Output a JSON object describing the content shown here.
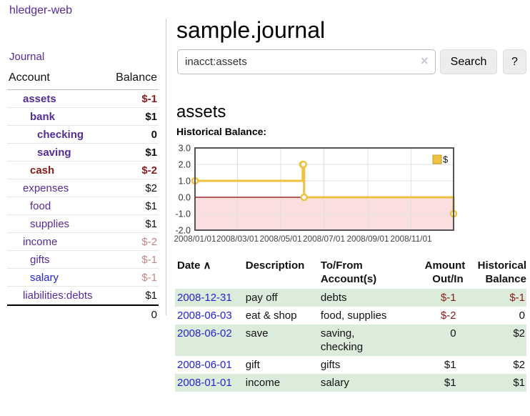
{
  "colors": {
    "link": "#2323d8",
    "link_visited": "#552b99",
    "negative": "#8b1a1a",
    "negative_muted": "#c08585",
    "row_stripe_green": "#dcecdb",
    "button_bg": "#ededed",
    "chart_line_gold": "#edc240",
    "chart_zero_line": "#8b0000",
    "chart_negative_fill": "#fbdfdf"
  },
  "sidebar": {
    "app_title": "hledger-web",
    "journal_label": "Journal",
    "accounts_table": {
      "account_header": "Account",
      "balance_header": "Balance",
      "rows": [
        {
          "name": "assets",
          "indent": 1,
          "bold": true,
          "name_color": "purple",
          "balance": "$-1",
          "balance_bold": true,
          "balance_color": "negative"
        },
        {
          "name": "bank",
          "indent": 2,
          "bold": true,
          "name_color": "purple",
          "balance": "$1",
          "balance_bold": true,
          "balance_color": "default"
        },
        {
          "name": "checking",
          "indent": 3,
          "bold": true,
          "name_color": "purple",
          "balance": "0",
          "balance_bold": true,
          "balance_color": "default"
        },
        {
          "name": "saving",
          "indent": 3,
          "bold": true,
          "name_color": "purple",
          "balance": "$1",
          "balance_bold": true,
          "balance_color": "default"
        },
        {
          "name": "cash",
          "indent": 2,
          "bold": true,
          "name_color": "negative",
          "balance": "$-2",
          "balance_bold": true,
          "balance_color": "negative"
        },
        {
          "name": "expenses",
          "indent": 1,
          "bold": false,
          "name_color": "purple",
          "balance": "$2",
          "balance_bold": false,
          "balance_color": "default"
        },
        {
          "name": "food",
          "indent": 2,
          "bold": false,
          "name_color": "purple",
          "balance": "$1",
          "balance_bold": false,
          "balance_color": "default"
        },
        {
          "name": "supplies",
          "indent": 2,
          "bold": false,
          "name_color": "purple",
          "balance": "$1",
          "balance_bold": false,
          "balance_color": "default"
        },
        {
          "name": "income",
          "indent": 1,
          "bold": false,
          "name_color": "purple",
          "balance": "$-2",
          "balance_bold": false,
          "balance_color": "muted"
        },
        {
          "name": "gifts",
          "indent": 2,
          "bold": false,
          "name_color": "purple",
          "balance": "$-1",
          "balance_bold": false,
          "balance_color": "muted"
        },
        {
          "name": "salary",
          "indent": 2,
          "bold": false,
          "name_color": "blue",
          "balance": "$-1",
          "balance_bold": false,
          "balance_color": "muted"
        },
        {
          "name": "liabilities:debts",
          "indent": 1,
          "bold": false,
          "name_color": "purple",
          "balance": "$1",
          "balance_bold": false,
          "balance_color": "default"
        }
      ],
      "total": "0"
    }
  },
  "main": {
    "title": "sample.journal",
    "search": {
      "value": "inacct:assets",
      "clear_icon": "×",
      "search_button": "Search",
      "help_button": "?"
    },
    "account_heading": "assets",
    "chart_label": "Historical Balance:"
  },
  "chart_data": {
    "type": "line",
    "title": "Historical Balance",
    "series": [
      {
        "name": "$",
        "step": true,
        "points": [
          [
            "2008/01/01",
            1
          ],
          [
            "2008/06/01",
            2
          ],
          [
            "2008/06/02",
            2
          ],
          [
            "2008/06/03",
            0
          ],
          [
            "2008/12/31",
            -1
          ]
        ]
      }
    ],
    "x_ticks": [
      "2008/01/01",
      "2008/03/01",
      "2008/05/01",
      "2008/07/01",
      "2008/09/01",
      "2008/11/01"
    ],
    "y_ticks": [
      3.0,
      2.0,
      1.0,
      0.0,
      -1.0,
      -2.0
    ],
    "ylim": [
      -2,
      3
    ],
    "xlim": [
      "2008/01/01",
      "2008/12/31"
    ],
    "grid": true,
    "legend_position": "top-right",
    "negative_region_shaded": true
  },
  "register": {
    "columns": [
      "Date",
      "Description",
      "To/From Account(s)",
      "Amount Out/In",
      "Historical Balance"
    ],
    "sort_icon": "∧",
    "rows": [
      {
        "date": "2008-12-31",
        "description": "pay off",
        "accounts": "debts",
        "amount": "$-1",
        "amount_negative": true,
        "balance": "$-1",
        "balance_negative": true
      },
      {
        "date": "2008-06-03",
        "description": "eat & shop",
        "accounts": "food, supplies",
        "amount": "$-2",
        "amount_negative": true,
        "balance": "0",
        "balance_negative": false
      },
      {
        "date": "2008-06-02",
        "description": "save",
        "accounts": "saving,\nchecking",
        "amount": "0",
        "amount_negative": false,
        "balance": "$2",
        "balance_negative": false
      },
      {
        "date": "2008-06-01",
        "description": "gift",
        "accounts": "gifts",
        "amount": "$1",
        "amount_negative": false,
        "balance": "$2",
        "balance_negative": false
      },
      {
        "date": "2008-01-01",
        "description": "income",
        "accounts": "salary",
        "amount": "$1",
        "amount_negative": false,
        "balance": "$1",
        "balance_negative": false
      }
    ]
  }
}
